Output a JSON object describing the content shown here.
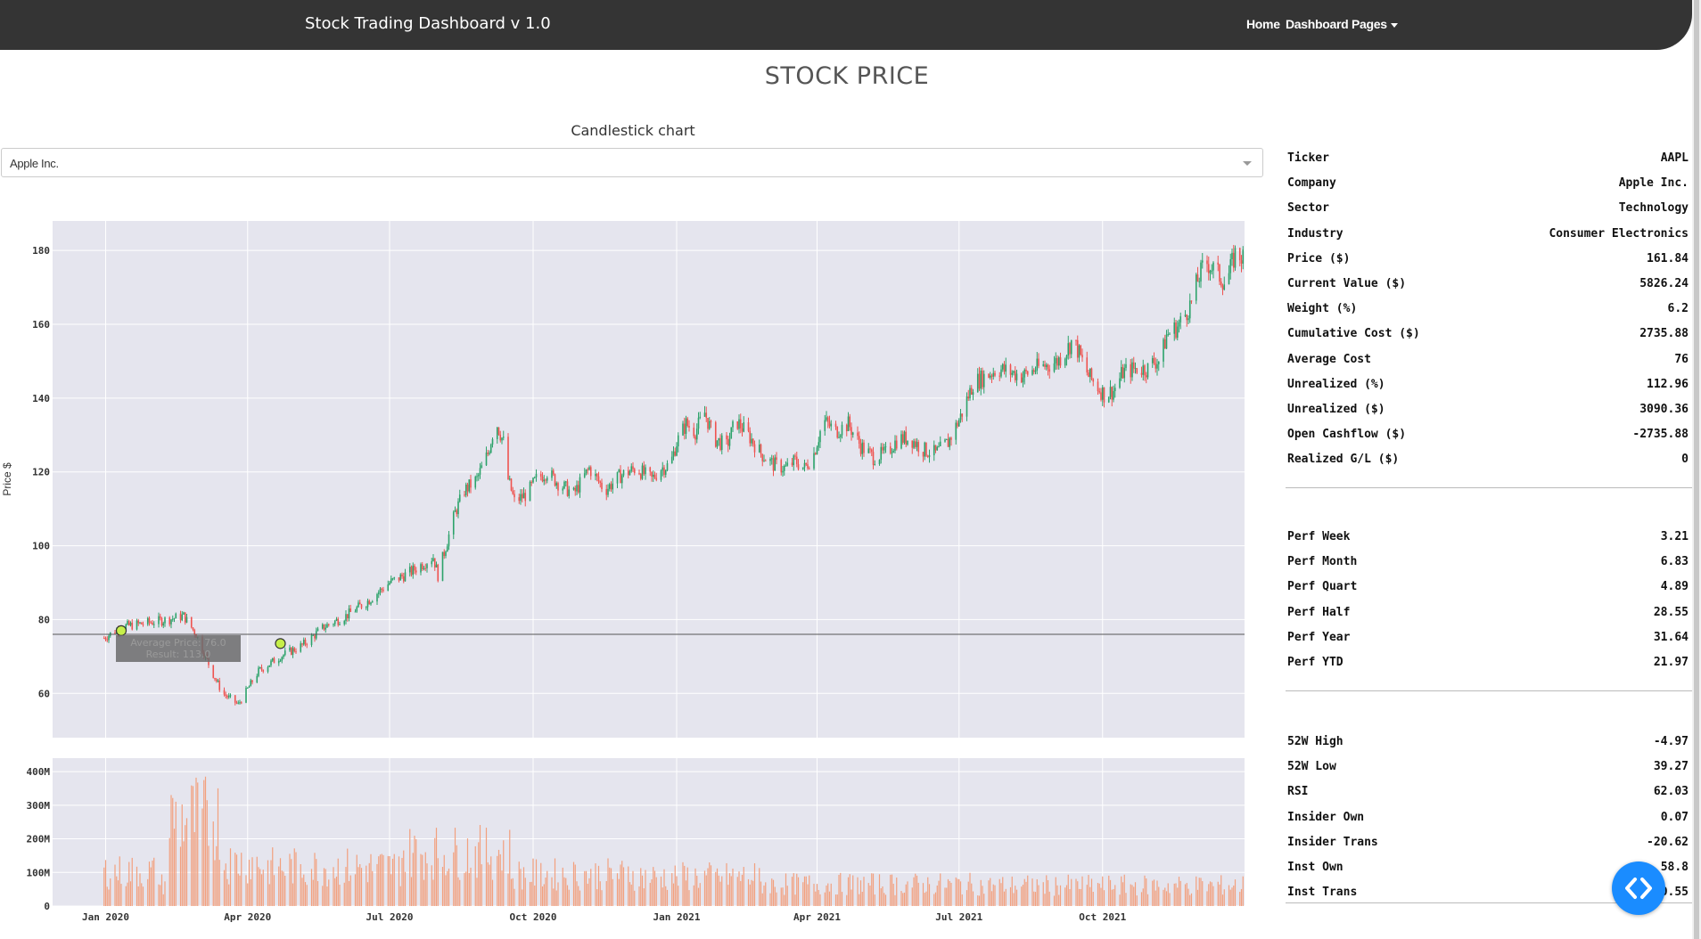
{
  "navbar": {
    "brand": "Stock Trading Dashboard v 1.0",
    "home": "Home",
    "pages": "Dashboard Pages"
  },
  "page_title": "STOCK PRICE",
  "chart_section_title": "Candlestick chart",
  "ticker_dropdown": {
    "selected": "Apple Inc."
  },
  "info": {
    "group1": [
      {
        "label": "Ticker",
        "value": "AAPL"
      },
      {
        "label": "Company",
        "value": "Apple Inc."
      },
      {
        "label": "Sector",
        "value": "Technology"
      },
      {
        "label": "Industry",
        "value": "Consumer Electronics"
      },
      {
        "label": "Price ($)",
        "value": "161.84"
      },
      {
        "label": "Current Value ($)",
        "value": "5826.24"
      },
      {
        "label": "Weight (%)",
        "value": "6.2"
      },
      {
        "label": "Cumulative Cost ($)",
        "value": "2735.88"
      },
      {
        "label": "Average Cost",
        "value": "76"
      },
      {
        "label": "Unrealized (%)",
        "value": "112.96"
      },
      {
        "label": "Unrealized ($)",
        "value": "3090.36"
      },
      {
        "label": "Open Cashflow ($)",
        "value": "-2735.88"
      },
      {
        "label": "Realized G/L ($)",
        "value": "0"
      }
    ],
    "group2": [
      {
        "label": "Perf Week",
        "value": "3.21"
      },
      {
        "label": "Perf Month",
        "value": "6.83"
      },
      {
        "label": "Perf Quart",
        "value": "4.89"
      },
      {
        "label": "Perf Half",
        "value": "28.55"
      },
      {
        "label": "Perf Year",
        "value": "31.64"
      },
      {
        "label": "Perf YTD",
        "value": "21.97"
      }
    ],
    "group3": [
      {
        "label": "52W High",
        "value": "-4.97"
      },
      {
        "label": "52W Low",
        "value": "39.27"
      },
      {
        "label": "RSI",
        "value": "62.03"
      },
      {
        "label": "Insider Own",
        "value": "0.07"
      },
      {
        "label": "Insider Trans",
        "value": "-20.62"
      },
      {
        "label": "Inst Own",
        "value": "58.8"
      },
      {
        "label": "Inst Trans",
        "value": "0.55"
      }
    ]
  },
  "chart_data": {
    "type": "candlestick",
    "ylabel": "Price $",
    "price_ylim": [
      48,
      188
    ],
    "price_yticks": [
      "180",
      "160",
      "140",
      "120",
      "100",
      "80",
      "60"
    ],
    "price_ytick_values": [
      180,
      160,
      140,
      120,
      100,
      80,
      60
    ],
    "volume_yticks": [
      "400M",
      "300M",
      "200M",
      "100M",
      "0"
    ],
    "volume_ytick_values": [
      400,
      300,
      200,
      100,
      0
    ],
    "volume_ylim_millions": [
      0,
      440
    ],
    "x_ticks": [
      "Jan 2020",
      "Apr 2020",
      "Jul 2020",
      "Oct 2020",
      "Jan 2021",
      "Apr 2021",
      "Jul 2021",
      "Oct 2021"
    ],
    "x_ticks_days": [
      0,
      91,
      182,
      274,
      366,
      456,
      547,
      639
    ],
    "x_end_days": [
      -34,
      730
    ],
    "average_price_line": 76,
    "price_path_days": [
      -1,
      10,
      25,
      40,
      50,
      58,
      62,
      68,
      75,
      85,
      98,
      112,
      126,
      140,
      154,
      168,
      182,
      196,
      210,
      213,
      224,
      230,
      238,
      245,
      250,
      255,
      258,
      262,
      270,
      276,
      283,
      290,
      300,
      310,
      320,
      330,
      340,
      350,
      356,
      362,
      366,
      372,
      378,
      384,
      390,
      398,
      404,
      412,
      420,
      428,
      436,
      442,
      448,
      454,
      460,
      468,
      476,
      484,
      492,
      500,
      508,
      516,
      524,
      532,
      540,
      548,
      556,
      564,
      572,
      580,
      588,
      596,
      604,
      610,
      616,
      620,
      624,
      630,
      636,
      640,
      646,
      652,
      660,
      668,
      672,
      676,
      680,
      686,
      690,
      696,
      700,
      705,
      710,
      718,
      724,
      730
    ],
    "price_path": [
      75,
      78,
      79,
      80,
      81,
      76,
      72,
      66,
      60,
      57,
      66,
      70,
      73,
      78,
      81,
      85,
      90,
      93,
      97,
      92,
      109,
      115,
      118,
      125,
      134,
      128,
      118,
      112,
      114,
      118,
      120,
      117,
      114,
      121,
      115,
      119,
      121,
      118,
      121,
      122,
      128,
      133,
      131,
      136,
      129,
      127,
      134,
      130,
      125,
      122,
      121,
      123,
      121,
      125,
      134,
      131,
      133,
      127,
      124,
      125,
      129,
      129,
      126,
      125,
      128,
      135,
      144,
      146,
      148,
      147,
      146,
      148,
      149,
      150,
      153,
      156,
      152,
      146,
      143,
      141,
      142,
      147,
      148,
      148,
      150,
      150,
      157,
      159,
      161,
      166,
      172,
      177,
      175,
      171,
      179,
      178
    ],
    "volume_peaks": [
      {
        "from": -5,
        "to": 35,
        "level": 140
      },
      {
        "from": 40,
        "to": 75,
        "level": 360
      },
      {
        "from": 75,
        "to": 100,
        "level": 180
      },
      {
        "from": 100,
        "to": 190,
        "level": 160
      },
      {
        "from": 190,
        "to": 260,
        "level": 220
      },
      {
        "from": 260,
        "to": 340,
        "level": 130
      },
      {
        "from": 340,
        "to": 420,
        "level": 120
      },
      {
        "from": 420,
        "to": 560,
        "level": 90
      },
      {
        "from": 560,
        "to": 730,
        "level": 85
      }
    ],
    "markers": [
      {
        "day": 10,
        "price": 77
      },
      {
        "day": 112,
        "price": 73.5
      }
    ],
    "tooltip": {
      "line1": "Average Price: 76.0",
      "line2": "Result: 113.0"
    }
  },
  "colors": {
    "navbar_bg": "#343434",
    "plot_bg": "#e5e5ee",
    "increasing": "#2ca26a",
    "decreasing": "#ef5350",
    "volume_bar": "#f2a07e",
    "fab": "#1a8cff"
  }
}
